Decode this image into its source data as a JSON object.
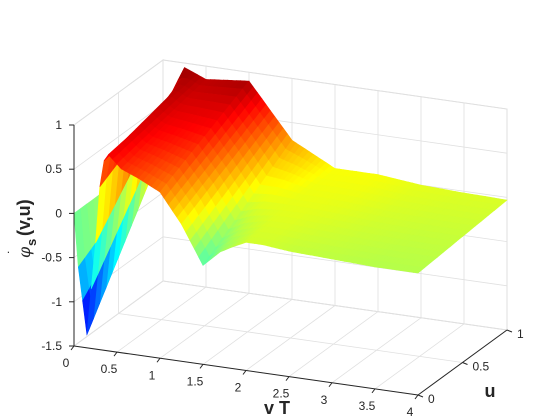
{
  "chart_data": {
    "type": "surface",
    "title": "",
    "xlabel": "v T",
    "ylabel": "u",
    "zlabel": "φ̇_s(v,u)",
    "zlabel_parts": {
      "symbol": "φ",
      "dot": "˙",
      "sub": "s",
      "args": "(v,u)"
    },
    "xlim": [
      0,
      4
    ],
    "ylim": [
      0,
      1
    ],
    "zlim": [
      -1.5,
      1
    ],
    "x_ticks": [
      "0",
      "0.5",
      "1",
      "1.5",
      "2",
      "2.5",
      "3",
      "3.5",
      "4"
    ],
    "y_ticks": [
      "0",
      "0.5",
      "1"
    ],
    "z_ticks": [
      "-1.5",
      "-1",
      "-0.5",
      "0",
      "0.5",
      "1"
    ],
    "colormap": "jet",
    "grid": true,
    "surface_profile_at_u0": {
      "x": [
        0.0,
        0.05,
        0.15,
        0.25,
        0.32,
        0.4,
        0.55,
        0.75,
        1.0,
        1.25,
        1.5,
        1.7,
        1.85,
        2.0,
        2.2,
        2.5,
        3.0,
        3.5,
        4.0
      ],
      "z": [
        0.0,
        -0.6,
        -1.35,
        -0.3,
        0.6,
        0.72,
        0.58,
        0.5,
        0.38,
        0.05,
        -0.38,
        -0.2,
        -0.12,
        -0.05,
        -0.05,
        -0.08,
        -0.1,
        -0.12,
        -0.12
      ]
    },
    "surface_profile_at_u1": {
      "x": [
        0.0,
        0.1,
        0.25,
        0.5,
        1.0,
        1.5,
        2.0,
        2.5,
        3.0,
        3.5,
        4.0
      ],
      "z": [
        0.0,
        0.1,
        0.95,
        0.85,
        0.9,
        0.3,
        0.05,
        0.05,
        0.0,
        -0.02,
        -0.03
      ]
    }
  }
}
